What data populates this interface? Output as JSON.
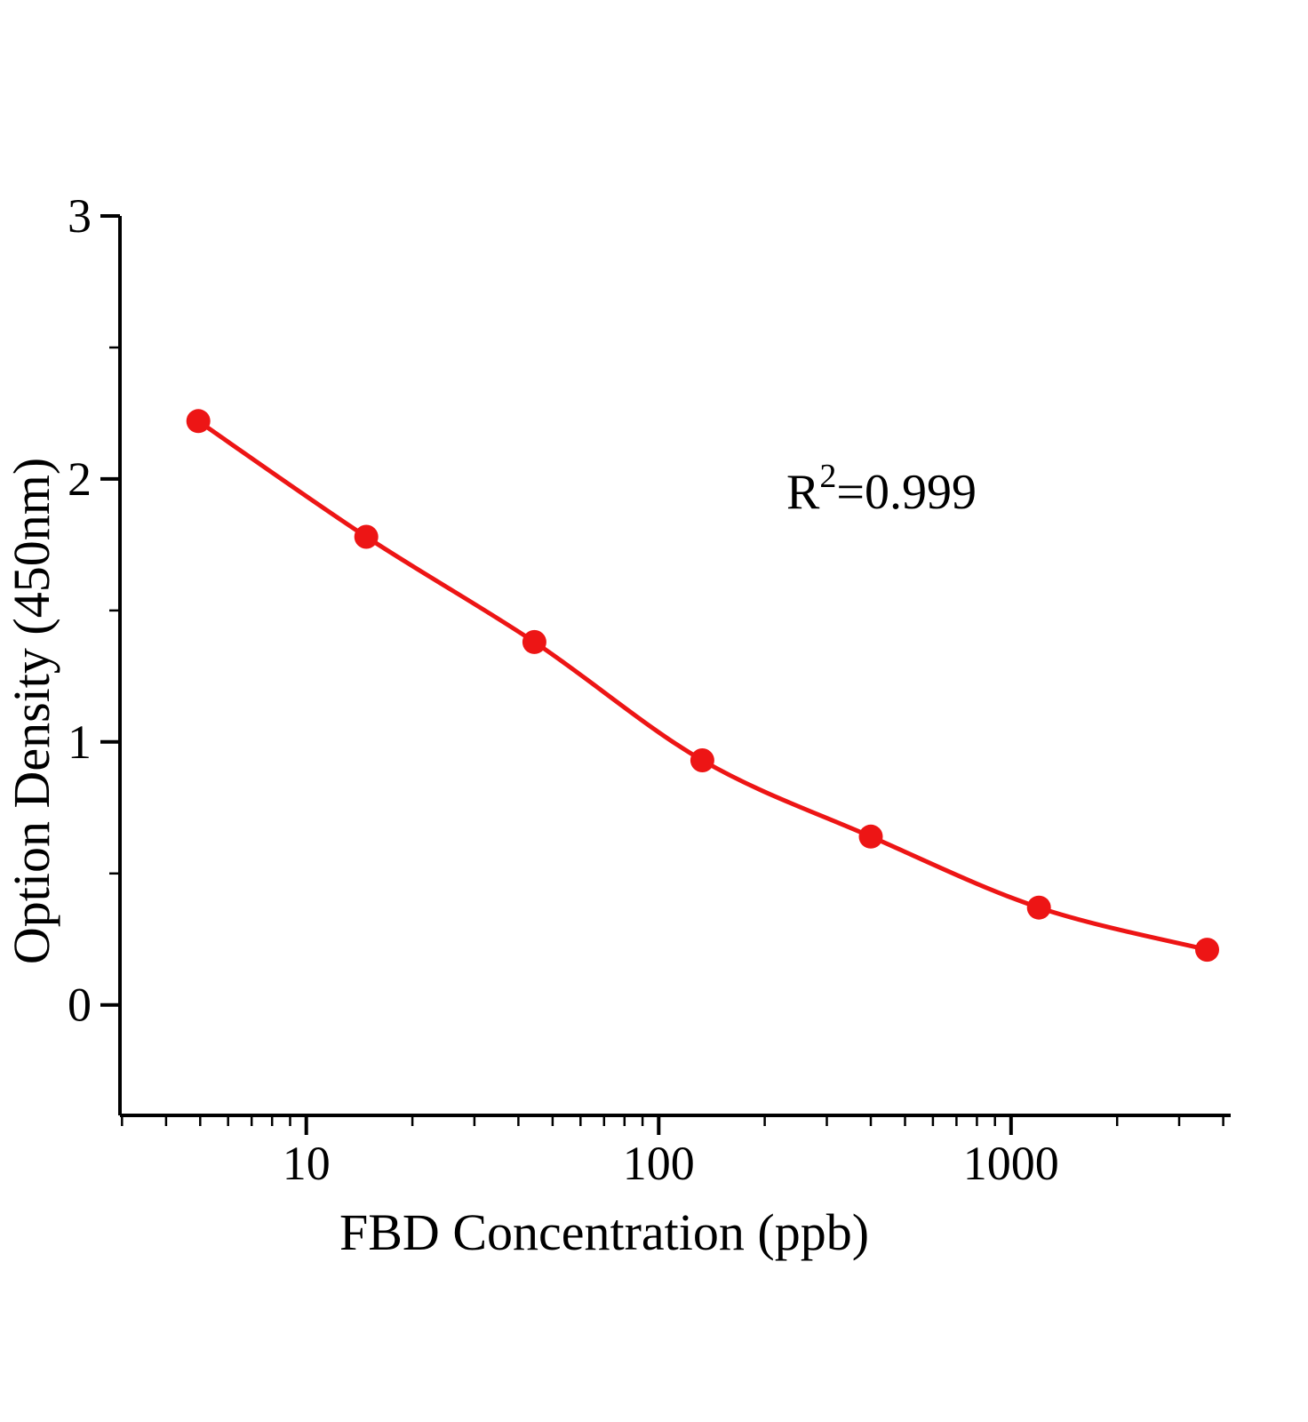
{
  "figure": {
    "background_color": "#ffffff"
  },
  "chart_data": {
    "type": "scatter",
    "title": "",
    "xlabel": "FBD Concentration (ppb)",
    "ylabel": "Option Density (450nm)",
    "x_scale": "log",
    "xlim": [
      2.96,
      4200
    ],
    "ylim": [
      -0.42,
      3.0
    ],
    "x": [
      4.94,
      14.8,
      44.4,
      133,
      400,
      1200,
      3600
    ],
    "y": [
      2.22,
      1.78,
      1.38,
      0.93,
      0.64,
      0.37,
      0.21
    ],
    "x_ticks": {
      "values": [
        10,
        100,
        1000
      ],
      "labels": [
        "10",
        "100",
        "1000"
      ]
    },
    "x_minor_ticks": [
      3,
      4,
      5,
      6,
      7,
      8,
      9,
      20,
      30,
      40,
      50,
      60,
      70,
      80,
      90,
      200,
      300,
      400,
      500,
      600,
      700,
      800,
      900,
      2000,
      3000,
      4000
    ],
    "y_ticks": {
      "values": [
        0,
        1,
        2,
        3
      ],
      "labels": [
        "0",
        "1",
        "2",
        "3"
      ]
    },
    "y_minor_ticks": [
      0.5,
      1.5,
      2.5
    ],
    "annotation": {
      "base": "R",
      "superscript": "2",
      "rest": "=0.999",
      "text": "R2=0.999"
    },
    "line_color": "#ed1515",
    "marker_color": "#ed1515",
    "axis_color": "#000000",
    "grid": false,
    "legend": false
  }
}
